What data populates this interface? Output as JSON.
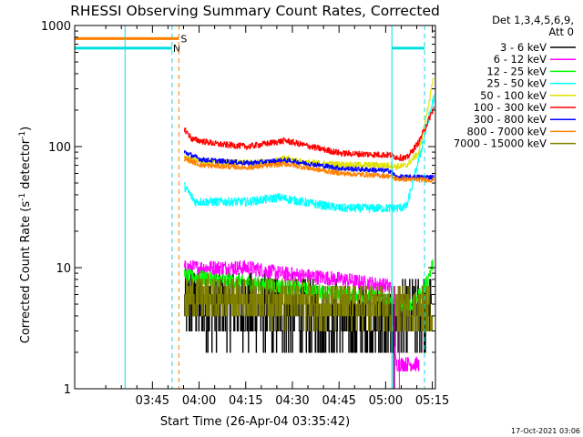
{
  "chart_data": {
    "type": "line",
    "title": "RHESSI Observing Summary Count Rates, Corrected",
    "xlabel": "Start Time (26-Apr-04 03:35:42)",
    "ylabel_main": "Corrected Count Rate (s",
    "ylabel_sup1": "-1",
    "ylabel_mid": " detector",
    "ylabel_sup2": "-1",
    "ylabel_end": ")",
    "y_scale": "log",
    "ylim": [
      1,
      1000
    ],
    "xlim_minutes": [
      -15.7,
      100.3
    ],
    "x_tick_labels": [
      "03:45",
      "04:00",
      "04:15",
      "04:30",
      "04:45",
      "05:00",
      "05:15"
    ],
    "x_tick_minutes": [
      9.3,
      24.3,
      39.3,
      54.3,
      69.3,
      84.3,
      99.3
    ],
    "y_tick_labels": [
      "1",
      "10",
      "100",
      "1000"
    ],
    "y_tick_values": [
      1,
      10,
      100,
      1000
    ],
    "legend": {
      "header1": "Det 1,3,4,5,6,9,",
      "header2": "Att 0",
      "placement": "right"
    },
    "flag_labels": {
      "saa": "S",
      "night": "N"
    },
    "timestamp": "17-Oct-2021 03:06",
    "markers": {
      "night_start_min": 0.5,
      "saa_end_min": 17.8,
      "data_start_min": 19.5,
      "data_end_min": 86.3,
      "night2_start_min": 86.3,
      "dashed_lines_min": [
        15.6,
        17.8,
        96.8
      ],
      "solid_lines_min": [
        86.3
      ]
    },
    "series": [
      {
        "name": "3 - 6 keV",
        "color": "#000000",
        "noise": 0.2,
        "keyframes": [
          [
            19.5,
            5
          ],
          [
            40,
            4.5
          ],
          [
            60,
            4
          ],
          [
            86,
            3.5
          ],
          [
            87.5,
            3.5
          ],
          [
            99,
            4.5
          ]
        ]
      },
      {
        "name": "6 - 12 keV",
        "color": "#ff00ff",
        "noise": 0.06,
        "keyframes": [
          [
            19.5,
            10
          ],
          [
            40,
            10
          ],
          [
            50,
            9
          ],
          [
            70,
            8
          ],
          [
            86,
            7
          ],
          [
            87.5,
            1.6
          ],
          [
            95,
            1.6
          ]
        ]
      },
      {
        "name": "12 - 25 keV",
        "color": "#00ff00",
        "noise": 0.06,
        "keyframes": [
          [
            19.5,
            8.5
          ],
          [
            40,
            7.5
          ],
          [
            60,
            6.5
          ],
          [
            86,
            5.5
          ],
          [
            87.5,
            5
          ],
          [
            93,
            5
          ],
          [
            97,
            7
          ],
          [
            99.5,
            11
          ]
        ]
      },
      {
        "name": "25 - 50 keV",
        "color": "#00ffff",
        "noise": 0.035,
        "keyframes": [
          [
            19.5,
            47
          ],
          [
            23,
            35
          ],
          [
            40,
            35
          ],
          [
            50,
            38
          ],
          [
            60,
            34
          ],
          [
            70,
            31
          ],
          [
            86,
            31
          ],
          [
            87.5,
            31
          ],
          [
            91,
            32
          ],
          [
            95,
            80
          ],
          [
            99.8,
            260
          ]
        ]
      },
      {
        "name": "50 - 100 keV",
        "color": "#e0e000",
        "noise": 0.025,
        "keyframes": [
          [
            19.5,
            80
          ],
          [
            30,
            73
          ],
          [
            48,
            75
          ],
          [
            52,
            80
          ],
          [
            58,
            74
          ],
          [
            70,
            71
          ],
          [
            86,
            70
          ],
          [
            87.5,
            68
          ],
          [
            91,
            70
          ],
          [
            95,
            90
          ],
          [
            99.8,
            380
          ]
        ]
      },
      {
        "name": "100 - 300 keV",
        "color": "#ff0000",
        "noise": 0.025,
        "keyframes": [
          [
            19.5,
            140
          ],
          [
            22,
            115
          ],
          [
            30,
            105
          ],
          [
            40,
            100
          ],
          [
            52,
            112
          ],
          [
            60,
            100
          ],
          [
            70,
            88
          ],
          [
            86,
            85
          ],
          [
            87.5,
            82
          ],
          [
            91,
            80
          ],
          [
            95,
            110
          ],
          [
            99.8,
            210
          ]
        ]
      },
      {
        "name": "300 - 800 keV",
        "color": "#0000ff",
        "noise": 0.02,
        "keyframes": [
          [
            19.5,
            90
          ],
          [
            25,
            78
          ],
          [
            40,
            73
          ],
          [
            52,
            77
          ],
          [
            60,
            72
          ],
          [
            70,
            66
          ],
          [
            86,
            63
          ],
          [
            87.5,
            56
          ],
          [
            99.8,
            56
          ]
        ]
      },
      {
        "name": "800 - 7000 keV",
        "color": "#ff8000",
        "noise": 0.02,
        "keyframes": [
          [
            19.5,
            80
          ],
          [
            25,
            70
          ],
          [
            40,
            67
          ],
          [
            52,
            72
          ],
          [
            60,
            66
          ],
          [
            70,
            60
          ],
          [
            86,
            57
          ],
          [
            87.5,
            54
          ],
          [
            99.8,
            53
          ]
        ]
      },
      {
        "name": "7000 - 15000 keV",
        "color": "#808000",
        "noise": 0.12,
        "keyframes": [
          [
            19.5,
            5.5
          ],
          [
            40,
            5.5
          ],
          [
            60,
            5
          ],
          [
            86,
            4.5
          ],
          [
            87.5,
            4.5
          ],
          [
            99.5,
            4.5
          ]
        ]
      }
    ]
  }
}
